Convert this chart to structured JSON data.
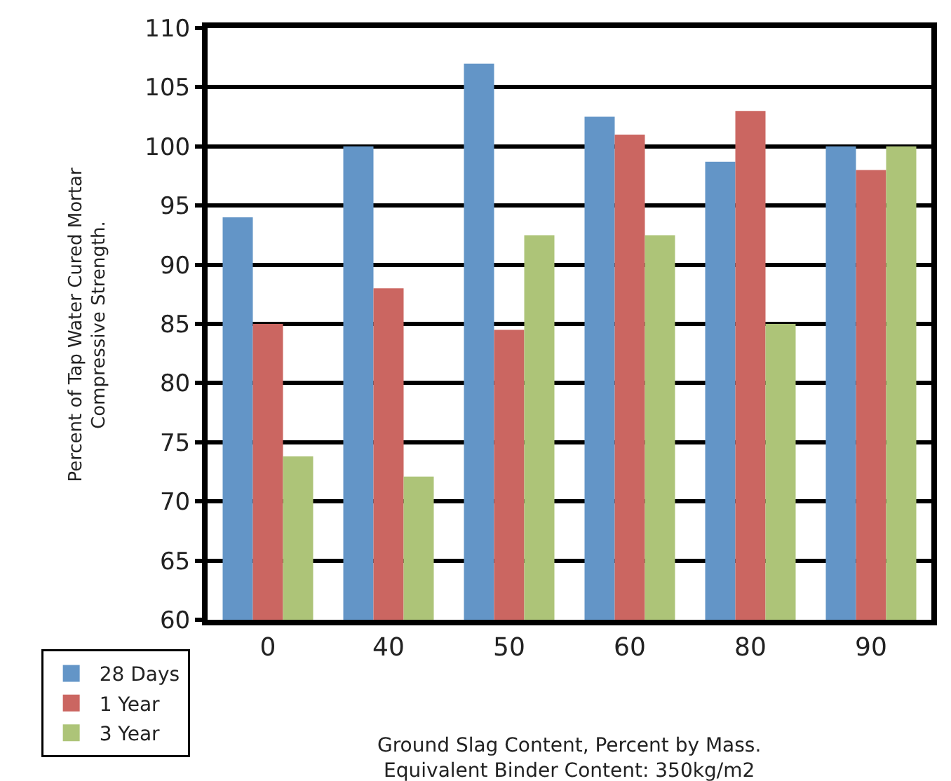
{
  "chart_data": {
    "type": "bar",
    "xlabel": "Ground Slag Content, Percent by Mass.\nEquivalent Binder Content: 350kg/m2",
    "ylabel": "Percent of Tap Water Cured Mortar\nCompressive Strength.",
    "categories": [
      "0",
      "40",
      "50",
      "60",
      "80",
      "90"
    ],
    "series": [
      {
        "name": "28 Days",
        "color": "#6395c7",
        "values": [
          94,
          100,
          107,
          102.5,
          98.7,
          100
        ]
      },
      {
        "name": "1 Year",
        "color": "#cb6661",
        "values": [
          85,
          88,
          84.5,
          101,
          103,
          98
        ]
      },
      {
        "name": "3 Year",
        "color": "#adc478",
        "values": [
          73.8,
          72.1,
          92.5,
          92.5,
          85,
          100
        ]
      }
    ],
    "ylim": [
      60,
      110
    ],
    "yticks": [
      60,
      65,
      70,
      75,
      80,
      85,
      90,
      95,
      100,
      105,
      110
    ],
    "grid": "y",
    "legend": "bottom left"
  }
}
